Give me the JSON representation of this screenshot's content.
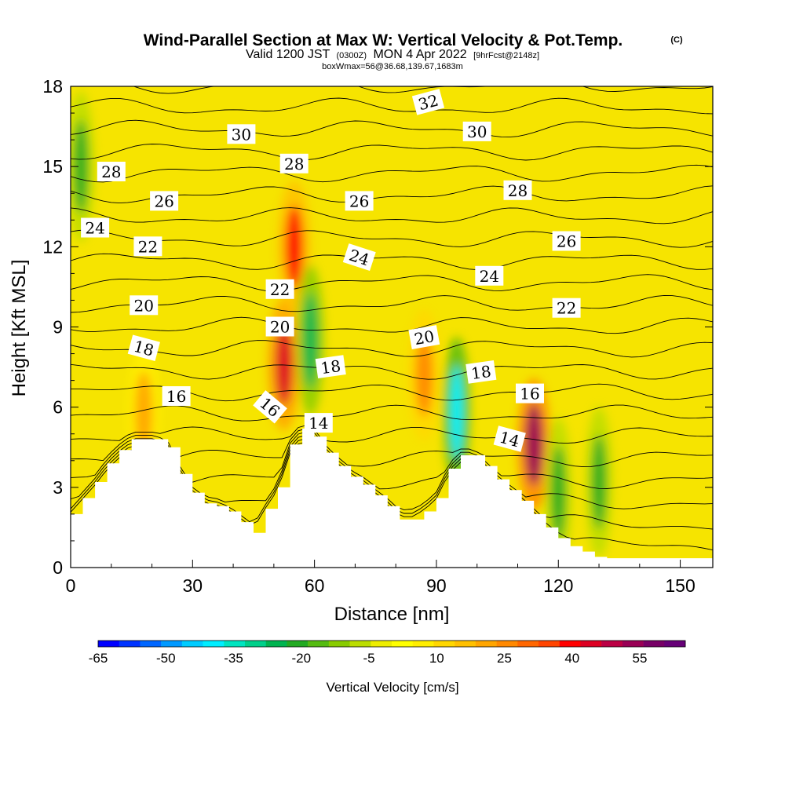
{
  "header": {
    "title": "Wind-Parallel Section at Max W: Vertical Velocity & Pot.Temp.",
    "title_mark": "(C)",
    "valid_line": {
      "prefix": "Valid 1200 JST",
      "utc": "(0300Z)",
      "date": "MON 4 Apr 2022",
      "fcst": "[9hrFcst@2148z]"
    },
    "box_line": "boxWmax=56@36.68,139.67,1683m"
  },
  "chart_data": {
    "type": "heatmap",
    "xlabel": "Distance [nm]",
    "ylabel": "Height [Kft MSL]",
    "xlim": [
      0,
      158
    ],
    "ylim": [
      0,
      18
    ],
    "x_ticks": [
      "0",
      "30",
      "60",
      "90",
      "120",
      "150"
    ],
    "y_ticks": [
      "0",
      "3",
      "6",
      "9",
      "12",
      "15",
      "18"
    ],
    "colorbar": {
      "label": "Vertical Velocity [cm/s]",
      "tick_labels": [
        "-65",
        "-50",
        "-35",
        "-20",
        "-5",
        "10",
        "25",
        "40",
        "55"
      ],
      "colors": [
        "#0000ff",
        "#0033ff",
        "#0066ff",
        "#0099ff",
        "#00ccff",
        "#00eeff",
        "#00e5c0",
        "#00d08a",
        "#00b450",
        "#22aa22",
        "#55bb11",
        "#88cc00",
        "#bbdd00",
        "#eeee00",
        "#ffff00",
        "#ffee00",
        "#ffd700",
        "#ffc000",
        "#ffa500",
        "#ff8800",
        "#ff6600",
        "#ff4400",
        "#ff0000",
        "#dd0022",
        "#bb0044",
        "#990055",
        "#770066",
        "#660077"
      ]
    },
    "velocity_cores": [
      {
        "kind": "updraft",
        "x": 18,
        "y": 5.8,
        "peak": 20
      },
      {
        "kind": "updraft",
        "x": 52.5,
        "y": 7.6,
        "peak": 45
      },
      {
        "kind": "updraft",
        "x": 55,
        "y": 12,
        "peak": 40
      },
      {
        "kind": "downdraft",
        "x": 59,
        "y": 8.5,
        "peak": -25
      },
      {
        "kind": "updraft",
        "x": 87,
        "y": 7.2,
        "peak": 25
      },
      {
        "kind": "downdraft",
        "x": 95,
        "y": 5.8,
        "peak": -40
      },
      {
        "kind": "updraft",
        "x": 114,
        "y": 4.6,
        "peak": 55
      },
      {
        "kind": "downdraft",
        "x": 2.5,
        "y": 15,
        "peak": -20
      },
      {
        "kind": "downdraft",
        "x": 120,
        "y": 2.8,
        "peak": -20
      },
      {
        "kind": "downdraft",
        "x": 130,
        "y": 3.2,
        "peak": -20
      }
    ],
    "terrain": {
      "x": [
        0,
        3,
        6,
        9,
        12,
        15,
        18,
        21,
        24,
        27,
        30,
        33,
        36,
        39,
        42,
        45,
        48,
        51,
        54,
        57,
        60,
        63,
        66,
        69,
        72,
        75,
        78,
        81,
        84,
        87,
        90,
        93,
        96,
        99,
        102,
        105,
        108,
        111,
        114,
        117,
        120,
        123,
        126,
        129,
        132,
        135,
        138,
        141,
        144,
        147,
        150,
        153,
        156,
        158
      ],
      "y": [
        2.0,
        2.6,
        3.2,
        3.9,
        4.4,
        4.8,
        4.8,
        4.8,
        4.5,
        3.5,
        2.8,
        2.4,
        2.3,
        2.1,
        1.7,
        1.3,
        2.2,
        3.0,
        4.6,
        5.2,
        4.9,
        4.3,
        3.8,
        3.4,
        3.1,
        2.7,
        2.3,
        1.8,
        1.8,
        2.1,
        2.6,
        3.7,
        4.2,
        4.2,
        3.8,
        3.3,
        2.9,
        2.5,
        2.0,
        1.5,
        1.1,
        0.8,
        0.6,
        0.4,
        0.35,
        0.35,
        0.35,
        0.35,
        0.35,
        0.35,
        0.35,
        0.35,
        0.35,
        0.35
      ]
    },
    "isentropes": {
      "levels": [
        12,
        13,
        14,
        15,
        16,
        17,
        18,
        19,
        20,
        21,
        22,
        23,
        24,
        25,
        26,
        27,
        28,
        29,
        30,
        31,
        32,
        33
      ],
      "labels": [
        {
          "text": "32",
          "x": 88,
          "y": 17.4,
          "angle": -15
        },
        {
          "text": "30",
          "x": 42,
          "y": 16.2,
          "angle": 0
        },
        {
          "text": "30",
          "x": 100,
          "y": 16.3,
          "angle": 0
        },
        {
          "text": "28",
          "x": 10,
          "y": 14.8,
          "angle": 0
        },
        {
          "text": "28",
          "x": 55,
          "y": 15.1,
          "angle": 0
        },
        {
          "text": "28",
          "x": 110,
          "y": 14.1,
          "angle": 0
        },
        {
          "text": "26",
          "x": 23,
          "y": 13.7,
          "angle": 0
        },
        {
          "text": "26",
          "x": 71,
          "y": 13.7,
          "angle": 0
        },
        {
          "text": "26",
          "x": 122,
          "y": 12.2,
          "angle": 0
        },
        {
          "text": "24",
          "x": 6,
          "y": 12.7,
          "angle": 0
        },
        {
          "text": "24",
          "x": 71,
          "y": 11.6,
          "angle": 18
        },
        {
          "text": "24",
          "x": 103,
          "y": 10.9,
          "angle": 0
        },
        {
          "text": "22",
          "x": 19,
          "y": 12.0,
          "angle": 0
        },
        {
          "text": "22",
          "x": 51.5,
          "y": 10.4,
          "angle": 0
        },
        {
          "text": "22",
          "x": 122,
          "y": 9.7,
          "angle": 0
        },
        {
          "text": "20",
          "x": 18,
          "y": 9.8,
          "angle": 0
        },
        {
          "text": "20",
          "x": 51.5,
          "y": 9.0,
          "angle": 0
        },
        {
          "text": "20",
          "x": 87,
          "y": 8.6,
          "angle": -10
        },
        {
          "text": "18",
          "x": 18,
          "y": 8.2,
          "angle": 15
        },
        {
          "text": "18",
          "x": 64,
          "y": 7.5,
          "angle": -8
        },
        {
          "text": "18",
          "x": 101,
          "y": 7.3,
          "angle": -8
        },
        {
          "text": "16",
          "x": 26,
          "y": 6.4,
          "angle": 0
        },
        {
          "text": "16",
          "x": 49,
          "y": 6.0,
          "angle": 40
        },
        {
          "text": "16",
          "x": 113,
          "y": 6.5,
          "angle": 0
        },
        {
          "text": "14",
          "x": 61,
          "y": 5.4,
          "angle": 0
        },
        {
          "text": "14",
          "x": 108,
          "y": 4.8,
          "angle": 15
        }
      ]
    }
  }
}
